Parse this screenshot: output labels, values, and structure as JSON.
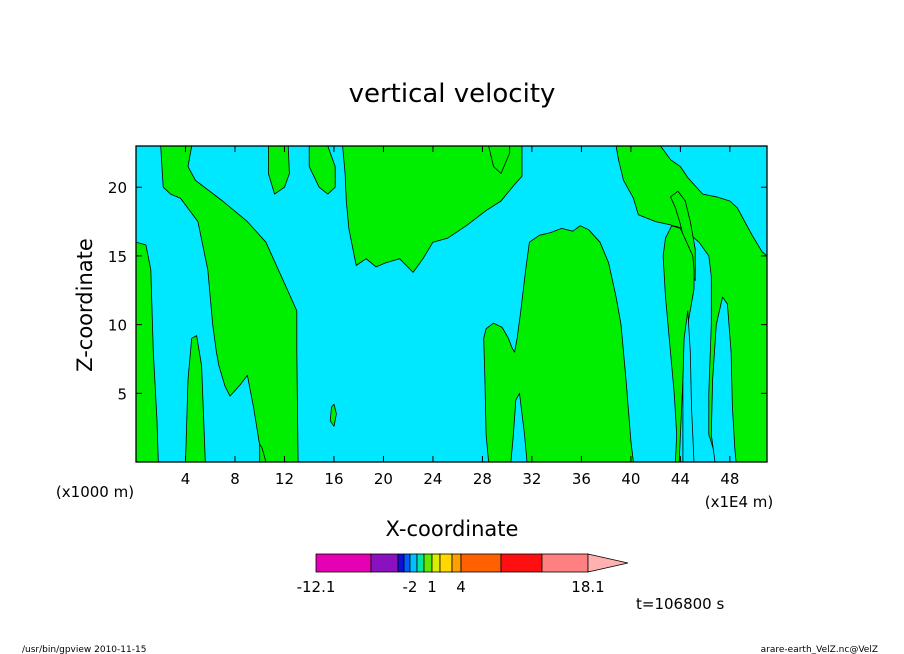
{
  "chart_data": {
    "type": "heatmap",
    "title": "vertical velocity",
    "xlabel": "X-coordinate",
    "ylabel": "Z-coordinate",
    "x_unit_left": "(x1000 m)",
    "x_unit_right": "(x1E4 m)",
    "xlim": [
      0,
      51
    ],
    "ylim": [
      0,
      23
    ],
    "x_ticks": [
      4,
      8,
      12,
      16,
      20,
      24,
      28,
      32,
      36,
      40,
      44,
      48
    ],
    "y_ticks": [
      5,
      10,
      15,
      20
    ],
    "fill_colors": {
      "background": "#00e8ff",
      "region": "#00ee00"
    },
    "regions": [
      [
        [
          0,
          0
        ],
        [
          0,
          16
        ],
        [
          0.8,
          15.8
        ],
        [
          1.2,
          14
        ],
        [
          1.4,
          8
        ],
        [
          1.7,
          3
        ],
        [
          1.8,
          0
        ]
      ],
      [
        [
          4,
          0
        ],
        [
          4.2,
          6
        ],
        [
          4.5,
          9
        ],
        [
          4.9,
          9.2
        ],
        [
          5.3,
          7
        ],
        [
          5.6,
          0
        ]
      ],
      [
        [
          2,
          23
        ],
        [
          2.2,
          20
        ],
        [
          2.8,
          19.5
        ],
        [
          3.6,
          19.2
        ],
        [
          5,
          17.5
        ],
        [
          5.8,
          14
        ],
        [
          6.2,
          10
        ],
        [
          6.5,
          8
        ],
        [
          6.7,
          7
        ],
        [
          7.2,
          5.5
        ],
        [
          7.6,
          4.8
        ],
        [
          8.4,
          5.6
        ],
        [
          9,
          6.3
        ],
        [
          9.5,
          4
        ],
        [
          10,
          1.2
        ],
        [
          10.4,
          0
        ],
        [
          13.1,
          0
        ],
        [
          13,
          8
        ],
        [
          13,
          11
        ],
        [
          12.5,
          12
        ],
        [
          10.5,
          16
        ],
        [
          9,
          17.5
        ],
        [
          7,
          19
        ],
        [
          4.8,
          20.5
        ],
        [
          4.2,
          21.5
        ],
        [
          4.5,
          23
        ]
      ],
      [
        [
          10,
          0
        ],
        [
          10,
          1.3
        ],
        [
          10.2,
          1
        ],
        [
          10.5,
          0
        ]
      ],
      [
        [
          10.7,
          23
        ],
        [
          10.7,
          21
        ],
        [
          11.2,
          19.5
        ],
        [
          12,
          20
        ],
        [
          12.4,
          21
        ],
        [
          12.3,
          23
        ]
      ],
      [
        [
          14,
          23
        ],
        [
          14,
          21.5
        ],
        [
          14.8,
          20
        ],
        [
          15.5,
          19.5
        ],
        [
          16.1,
          20
        ],
        [
          16.1,
          21.5
        ],
        [
          15.5,
          23
        ]
      ],
      [
        [
          15.7,
          3
        ],
        [
          15.8,
          4
        ],
        [
          16,
          4.2
        ],
        [
          16.2,
          3.5
        ],
        [
          16,
          2.6
        ]
      ],
      [
        [
          16.7,
          23
        ],
        [
          16.9,
          21
        ],
        [
          17,
          19
        ],
        [
          17.2,
          17
        ],
        [
          17.8,
          14.3
        ],
        [
          18.6,
          14.8
        ],
        [
          19.4,
          14.2
        ],
        [
          20.2,
          14.5
        ],
        [
          21.3,
          14.8
        ],
        [
          22.4,
          13.8
        ],
        [
          23.2,
          14.8
        ],
        [
          24,
          16
        ],
        [
          25.2,
          16.3
        ],
        [
          26.7,
          17.2
        ],
        [
          28.3,
          18.3
        ],
        [
          29.5,
          19
        ],
        [
          30.6,
          20.2
        ],
        [
          31.2,
          20.8
        ],
        [
          31.2,
          23
        ]
      ],
      [
        [
          28.5,
          23
        ],
        [
          28.9,
          21.5
        ],
        [
          29.5,
          21
        ],
        [
          30.2,
          22.5
        ],
        [
          30.2,
          23
        ]
      ],
      [
        [
          28.5,
          0
        ],
        [
          28.3,
          2
        ],
        [
          28.2,
          6
        ],
        [
          28.1,
          9
        ],
        [
          28.3,
          9.7
        ],
        [
          28.9,
          10.1
        ],
        [
          29.6,
          9.8
        ],
        [
          30.1,
          9
        ],
        [
          30.4,
          8.3
        ],
        [
          30.6,
          8
        ],
        [
          30.8,
          9
        ],
        [
          31.1,
          11
        ],
        [
          31.5,
          14
        ],
        [
          31.8,
          16
        ],
        [
          32.6,
          16.5
        ],
        [
          33.5,
          16.7
        ],
        [
          34.4,
          17
        ],
        [
          35.3,
          16.8
        ],
        [
          35.9,
          17.2
        ],
        [
          36.6,
          16.9
        ],
        [
          37.5,
          16
        ],
        [
          38.2,
          14.5
        ],
        [
          38.8,
          12
        ],
        [
          39.2,
          10
        ],
        [
          39.6,
          6
        ],
        [
          40,
          1.5
        ],
        [
          40.2,
          0
        ],
        [
          31.6,
          0
        ],
        [
          31.4,
          2
        ],
        [
          31,
          5
        ],
        [
          30.7,
          4.5
        ],
        [
          30.5,
          2
        ],
        [
          30.3,
          0
        ]
      ],
      [
        [
          38.8,
          23
        ],
        [
          39,
          22
        ],
        [
          39.4,
          20.5
        ],
        [
          40.2,
          19.2
        ],
        [
          40.6,
          18
        ],
        [
          42,
          17.5
        ],
        [
          43,
          17.3
        ],
        [
          44.2,
          17
        ],
        [
          45.5,
          16
        ],
        [
          46.3,
          15
        ],
        [
          46.5,
          13.5
        ],
        [
          46.5,
          10
        ],
        [
          46.3,
          5
        ],
        [
          46.3,
          2
        ],
        [
          47,
          0
        ],
        [
          51,
          0
        ],
        [
          51,
          15
        ],
        [
          50.6,
          15.3
        ],
        [
          49.8,
          16.5
        ],
        [
          49.2,
          17.5
        ],
        [
          48.6,
          18.5
        ],
        [
          48,
          19
        ],
        [
          46.9,
          19.3
        ],
        [
          45.8,
          19.5
        ],
        [
          44.6,
          20.7
        ],
        [
          44,
          21.5
        ],
        [
          43.2,
          22
        ],
        [
          42.4,
          23
        ]
      ],
      [
        [
          43.2,
          19.3
        ],
        [
          43.6,
          18.5
        ],
        [
          44,
          17.3
        ],
        [
          44.4,
          15.8
        ],
        [
          44.8,
          13.8
        ],
        [
          45.2,
          13.2
        ],
        [
          45.2,
          15.5
        ],
        [
          44.8,
          17.5
        ],
        [
          44.4,
          19
        ],
        [
          43.8,
          19.7
        ]
      ],
      [
        [
          43.9,
          0
        ],
        [
          44,
          2
        ],
        [
          44.2,
          6
        ],
        [
          44.6,
          10
        ],
        [
          45.1,
          12.6
        ],
        [
          45.1,
          14
        ],
        [
          45,
          15
        ],
        [
          44.5,
          16
        ],
        [
          44,
          17
        ],
        [
          43.3,
          17.2
        ],
        [
          42.8,
          16.3
        ],
        [
          42.6,
          15
        ],
        [
          42.8,
          12
        ],
        [
          43.2,
          8
        ],
        [
          43.5,
          5
        ],
        [
          43.7,
          2
        ],
        [
          43.6,
          0
        ]
      ]
    ],
    "regions_hole": [
      [
        [
          44.2,
          0
        ],
        [
          45.1,
          0
        ],
        [
          44.9,
          4
        ],
        [
          44.8,
          8
        ],
        [
          44.6,
          11
        ],
        [
          44.3,
          9
        ],
        [
          44.2,
          6
        ],
        [
          44.2,
          2
        ]
      ],
      [
        [
          46.8,
          0
        ],
        [
          46.5,
          2
        ],
        [
          46.6,
          6
        ],
        [
          46.9,
          10
        ],
        [
          47.4,
          12
        ],
        [
          47.8,
          11.5
        ],
        [
          48.1,
          8
        ],
        [
          48.2,
          4
        ],
        [
          48.4,
          1
        ],
        [
          48.5,
          0
        ]
      ]
    ],
    "colorbar": {
      "colors": [
        "#e600b4",
        "#8a10c0",
        "#1010d0",
        "#0060ff",
        "#00c0ff",
        "#00e8a0",
        "#60e800",
        "#d8f000",
        "#ffd800",
        "#ffa000",
        "#ff6000",
        "#ff1010",
        "#ff8080",
        "#ffb0b0"
      ],
      "labels": [
        "-12.1",
        "-2",
        "1",
        "4",
        "18.1"
      ]
    },
    "annotations": {
      "time": "t=106800 s",
      "footer_left": "/usr/bin/gpview  2010-11-15",
      "footer_right": "arare-earth_VelZ.nc@VelZ"
    }
  }
}
